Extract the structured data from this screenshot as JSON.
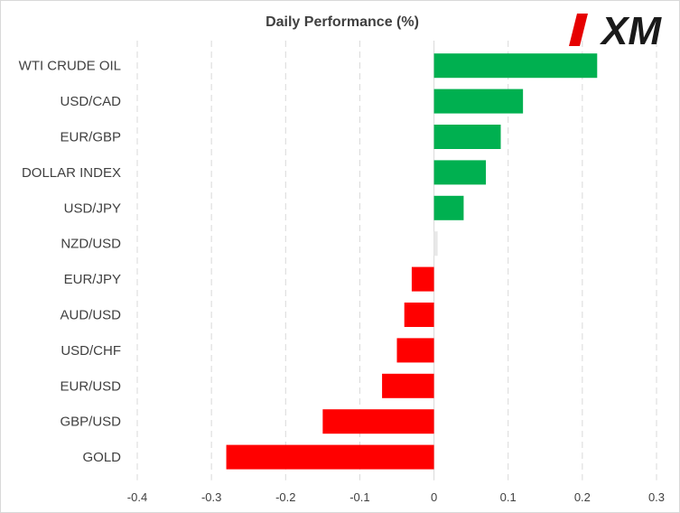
{
  "chart_data": {
    "type": "bar",
    "orientation": "horizontal",
    "title": "Daily Performance  (%)",
    "xlabel": "",
    "ylabel": "",
    "xlim": [
      -0.4,
      0.3
    ],
    "x_ticks": [
      -0.4,
      -0.3,
      -0.2,
      -0.1,
      0,
      0.1,
      0.2,
      0.3
    ],
    "x_tick_labels": [
      "-0.4",
      "-0.3",
      "-0.2",
      "-0.1",
      "0",
      "0.1",
      "0.2",
      "0.3"
    ],
    "grid": "vertical dashed",
    "legend": "none",
    "categories": [
      "WTI CRUDE OIL",
      "USD/CAD",
      "EUR/GBP",
      "DOLLAR INDEX",
      "USD/JPY",
      "NZD/USD",
      "EUR/JPY",
      "AUD/USD",
      "USD/CHF",
      "EUR/USD",
      "GBP/USD",
      "GOLD"
    ],
    "values": [
      0.22,
      0.12,
      0.09,
      0.07,
      0.04,
      0.005,
      -0.03,
      -0.04,
      -0.05,
      -0.07,
      -0.15,
      -0.28
    ],
    "colors": {
      "positive": "#00b050",
      "negative": "#ff0000",
      "neutral": "#e8e8e8"
    }
  },
  "logo": {
    "text": "XM",
    "color_dark": "#1a1a1a",
    "color_accent": "#e60000"
  }
}
